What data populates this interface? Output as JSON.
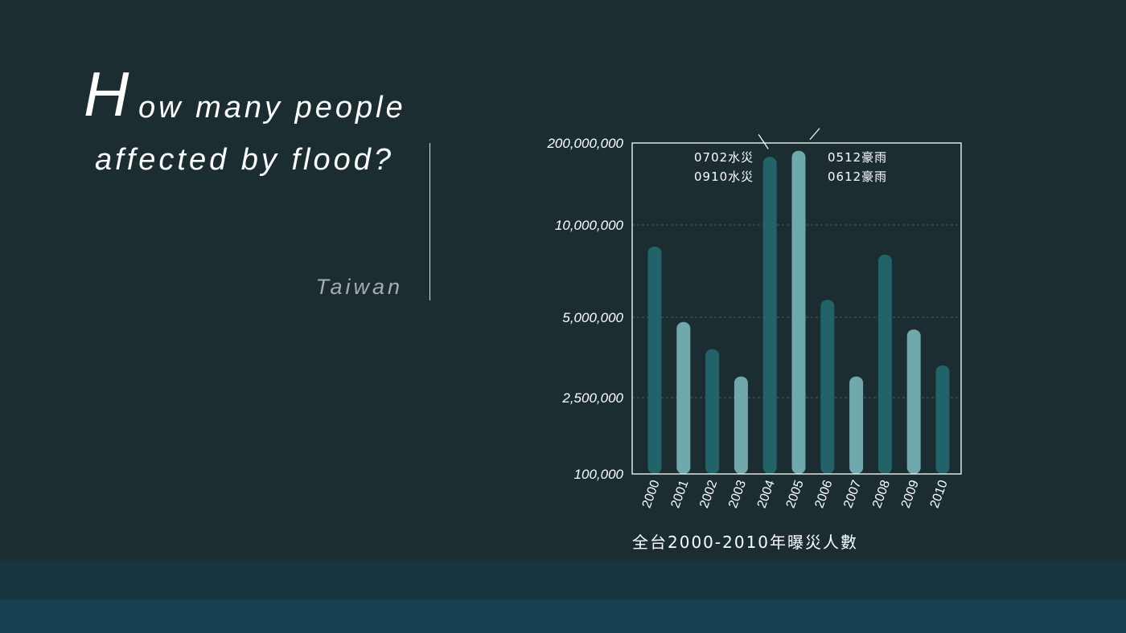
{
  "title": {
    "first_letter": "H",
    "line1_rest": "ow many people",
    "line2": "affected by flood?"
  },
  "subtitle": "Taiwan",
  "colors": {
    "background": "#1b2d31",
    "bar_dark": "#22636a",
    "bar_light": "#6fa8ad",
    "band_top": "#163541",
    "band_bottom": "#164152"
  },
  "chart_data": {
    "type": "bar",
    "scale": "nonlinear",
    "categories": [
      "2000",
      "2001",
      "2002",
      "2003",
      "2004",
      "2005",
      "2006",
      "2007",
      "2008",
      "2009",
      "2010"
    ],
    "values": [
      8500000,
      4800000,
      3800000,
      3000000,
      120000000,
      150000000,
      5700000,
      3000000,
      8000000,
      4500000,
      3300000
    ],
    "bar_shades": [
      "dark",
      "light",
      "dark",
      "light",
      "dark",
      "light",
      "dark",
      "light",
      "dark",
      "light",
      "dark"
    ],
    "yticks": [
      {
        "value": 100000,
        "label": "100,000"
      },
      {
        "value": 2500000,
        "label": "2,500,000"
      },
      {
        "value": 5000000,
        "label": "5,000,000"
      },
      {
        "value": 10000000,
        "label": "10,000,000"
      },
      {
        "value": 200000000,
        "label": "200,000,000"
      }
    ],
    "ylim": [
      100000,
      200000000
    ],
    "grid": true,
    "annotations": [
      {
        "category": "2004",
        "lines": [
          "0702水災",
          "0910水災"
        ]
      },
      {
        "category": "2005",
        "lines": [
          "0512豪雨",
          "0612豪雨"
        ]
      }
    ],
    "caption": "全台2000-2010年曝災人數"
  }
}
